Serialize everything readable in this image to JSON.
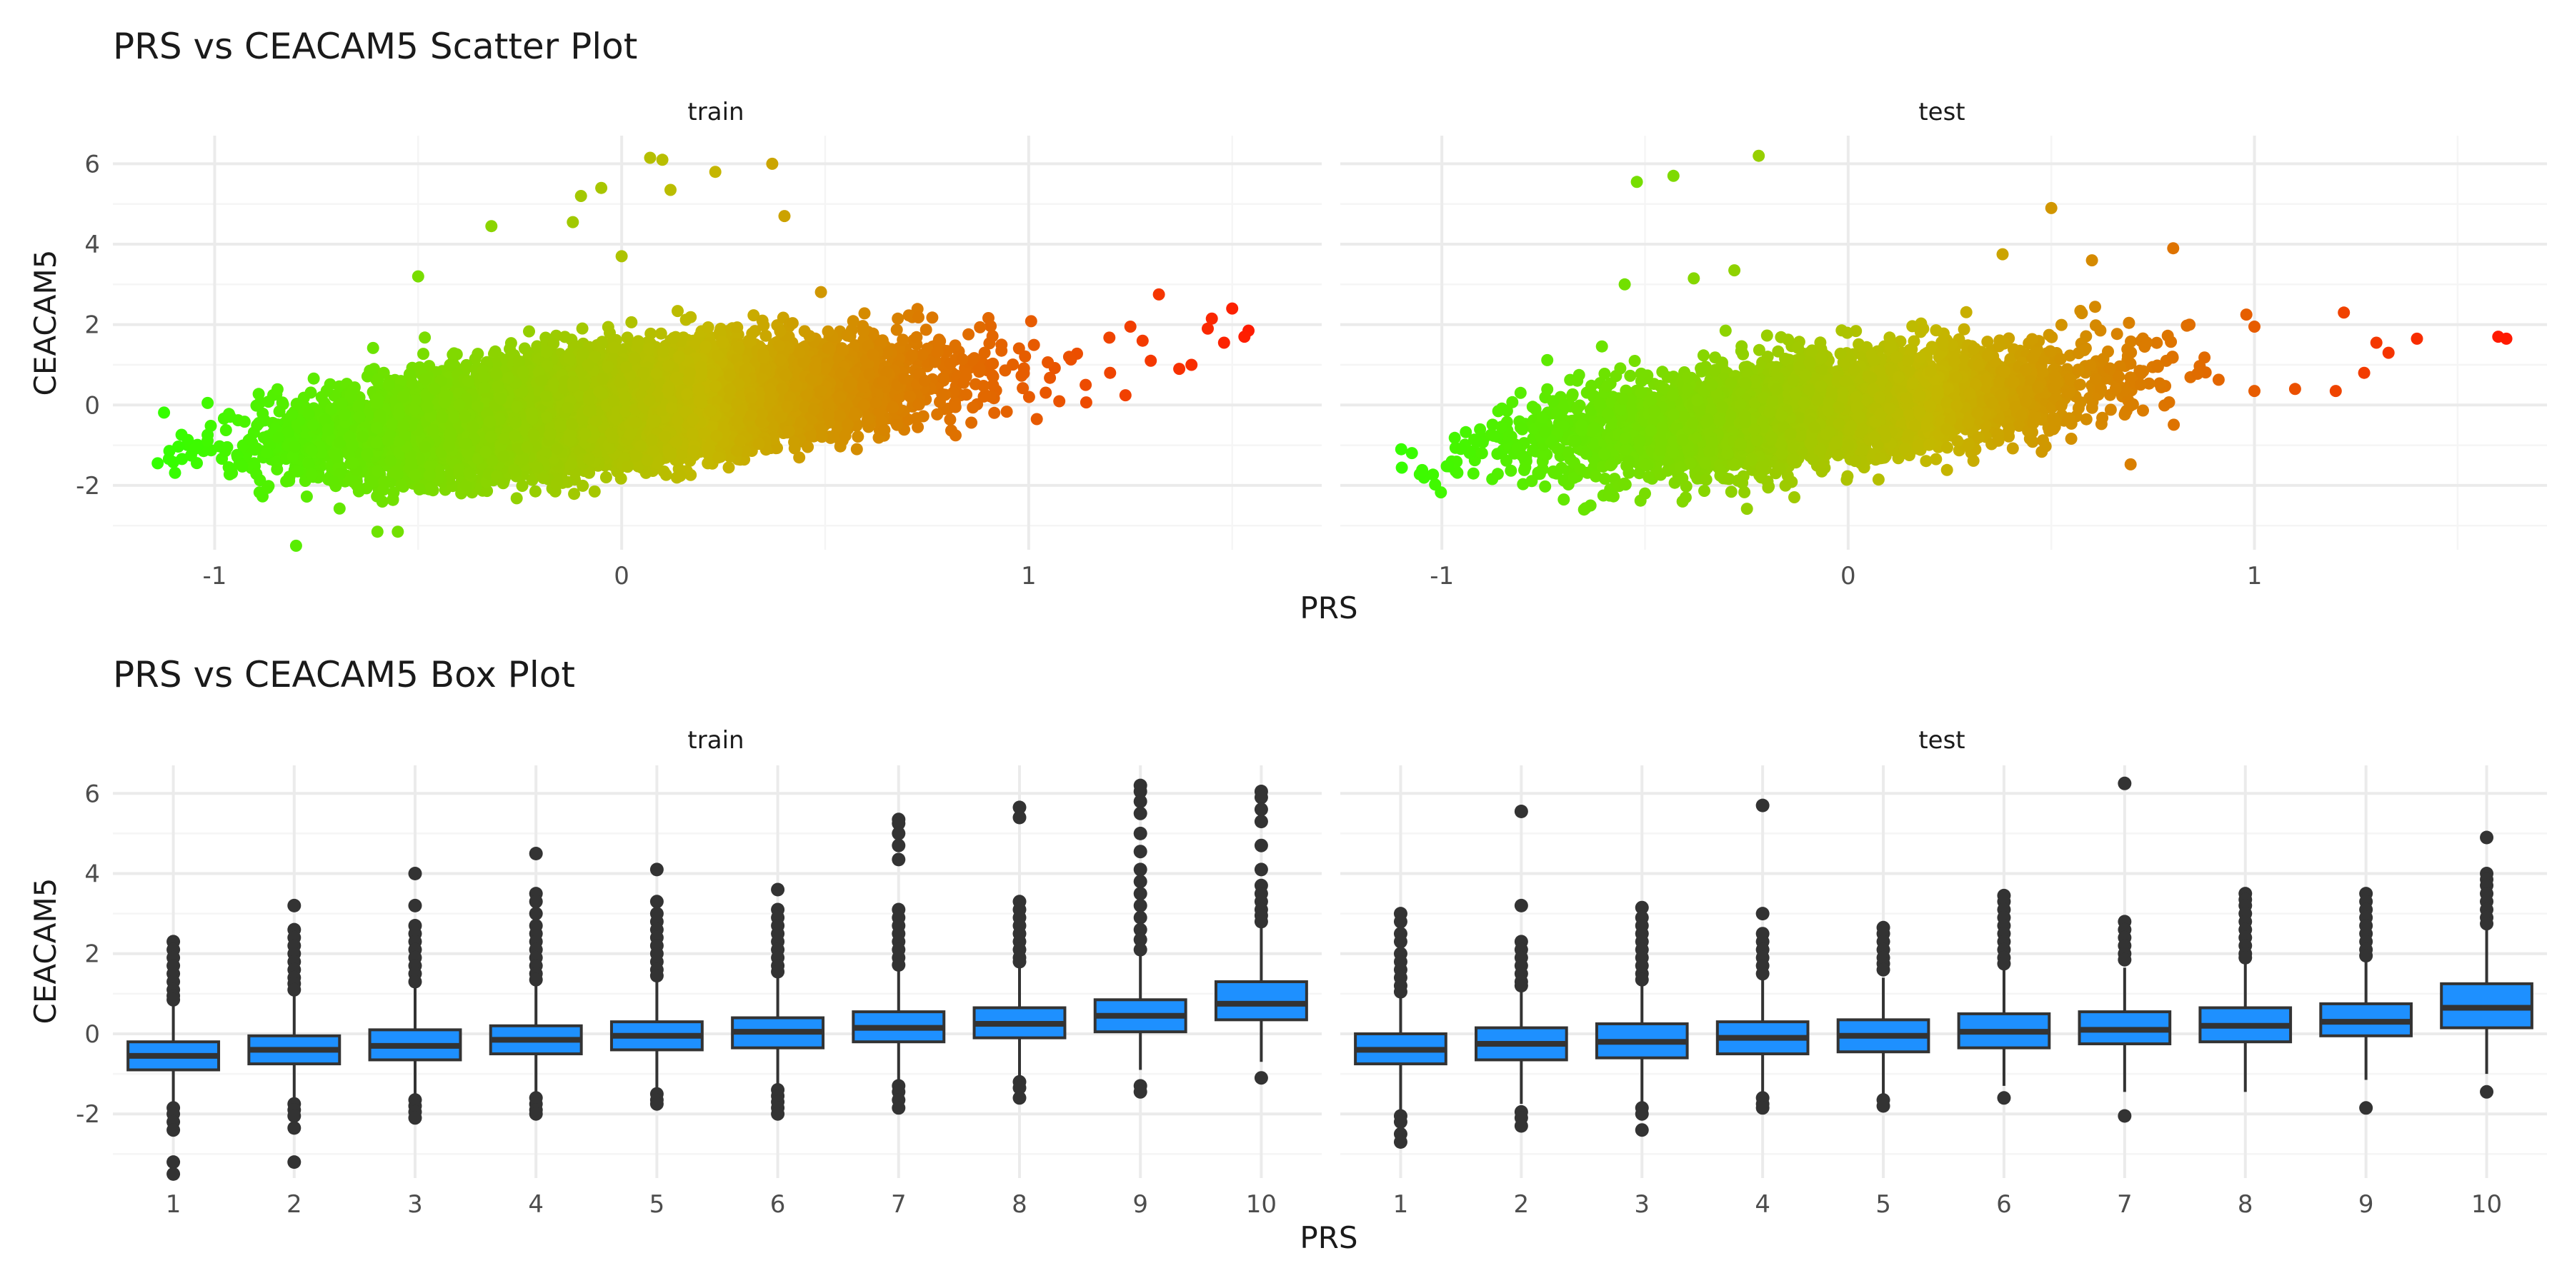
{
  "colors": {
    "background": "#ffffff",
    "grid_major": "#ebebeb",
    "grid_minor": "#f5f5f5",
    "box_fill": "#1e90ff",
    "box_line": "#333333",
    "scatter_low": "#33ff00",
    "scatter_mid": "#c4b800",
    "scatter_high": "#ff1a00"
  },
  "chart_data": [
    {
      "type": "scatter",
      "title": "PRS vs CEACAM5 Scatter Plot",
      "xlabel": "PRS",
      "ylabel": "CEACAM5",
      "grid": true,
      "color_by": "x",
      "facets": [
        {
          "label": "train",
          "xlim": [
            -1.25,
            1.72
          ],
          "ylim": [
            -3.6,
            6.7
          ],
          "x_ticks": [
            -1,
            0,
            1
          ],
          "y_ticks": [
            -2,
            0,
            2,
            4,
            6
          ],
          "x_tick_labels": [
            "-1",
            "0",
            "1"
          ],
          "y_tick_labels": [
            "-2",
            "0",
            "2",
            "4",
            "6"
          ],
          "cloud": {
            "n": 12000,
            "x_mean": -0.05,
            "x_sd": 0.33,
            "slope": 1.05,
            "intercept": -0.05,
            "resid_sd": 0.62,
            "xmin": -1.14,
            "xmax": 1.53
          },
          "outliers": [
            [
              -1.14,
              -1.45
            ],
            [
              -1.05,
              -1.1
            ],
            [
              -0.8,
              -3.5
            ],
            [
              -0.55,
              -3.15
            ],
            [
              -0.6,
              -3.15
            ],
            [
              0.07,
              6.15
            ],
            [
              0.1,
              6.1
            ],
            [
              0.37,
              6.0
            ],
            [
              0.23,
              5.8
            ],
            [
              -0.05,
              5.4
            ],
            [
              -0.1,
              5.2
            ],
            [
              0.12,
              5.35
            ],
            [
              -0.32,
              4.45
            ],
            [
              -0.12,
              4.55
            ],
            [
              0.4,
              4.7
            ],
            [
              -0.5,
              3.2
            ],
            [
              0.0,
              3.7
            ],
            [
              1.32,
              2.75
            ],
            [
              1.5,
              2.4
            ],
            [
              1.45,
              2.15
            ],
            [
              1.54,
              1.85
            ],
            [
              1.44,
              1.9
            ],
            [
              1.48,
              1.55
            ],
            [
              1.53,
              1.7
            ],
            [
              1.4,
              1.0
            ],
            [
              1.37,
              0.9
            ],
            [
              1.3,
              1.1
            ],
            [
              1.25,
              1.95
            ],
            [
              1.28,
              1.6
            ],
            [
              1.02,
              -0.35
            ],
            [
              0.82,
              -0.05
            ],
            [
              1.14,
              0.5
            ],
            [
              1.2,
              0.8
            ]
          ]
        },
        {
          "label": "test",
          "xlim": [
            -1.25,
            1.72
          ],
          "ylim": [
            -3.6,
            6.7
          ],
          "x_ticks": [
            -1,
            0,
            1
          ],
          "y_ticks": [
            -2,
            0,
            2,
            4,
            6
          ],
          "x_tick_labels": [
            "-1",
            "0",
            "1"
          ],
          "y_tick_labels": [
            "-2",
            "0",
            "2",
            "4",
            "6"
          ],
          "cloud": {
            "n": 4200,
            "x_mean": -0.08,
            "x_sd": 0.33,
            "slope": 1.05,
            "intercept": -0.05,
            "resid_sd": 0.62,
            "xmin": -1.1,
            "xmax": 1.2
          },
          "outliers": [
            [
              -1.1,
              -1.1
            ],
            [
              -0.52,
              5.55
            ],
            [
              -0.43,
              5.7
            ],
            [
              -0.22,
              6.2
            ],
            [
              0.5,
              4.9
            ],
            [
              1.6,
              1.7
            ],
            [
              1.62,
              1.65
            ],
            [
              1.4,
              1.65
            ],
            [
              1.33,
              1.3
            ],
            [
              1.22,
              2.3
            ],
            [
              1.3,
              1.55
            ],
            [
              1.1,
              0.4
            ],
            [
              1.0,
              0.35
            ],
            [
              1.2,
              0.35
            ],
            [
              1.27,
              0.8
            ],
            [
              1.0,
              1.95
            ],
            [
              0.84,
              2.0
            ],
            [
              0.98,
              2.25
            ],
            [
              0.6,
              3.6
            ],
            [
              0.8,
              3.9
            ],
            [
              0.38,
              3.75
            ],
            [
              -0.65,
              -2.6
            ],
            [
              -0.7,
              -2.35
            ],
            [
              -0.5,
              -2.2
            ],
            [
              -0.4,
              -2.3
            ],
            [
              -0.38,
              3.15
            ],
            [
              -0.28,
              3.35
            ],
            [
              -0.55,
              3.0
            ]
          ]
        }
      ]
    },
    {
      "type": "box",
      "title": "PRS vs CEACAM5 Box Plot",
      "xlabel": "PRS",
      "ylabel": "CEACAM5",
      "grid": true,
      "categories": [
        "1",
        "2",
        "3",
        "4",
        "5",
        "6",
        "7",
        "8",
        "9",
        "10"
      ],
      "facets": [
        {
          "label": "train",
          "ylim": [
            -3.6,
            6.7
          ],
          "y_ticks": [
            -2,
            0,
            2,
            4,
            6
          ],
          "y_tick_labels": [
            "-2",
            "0",
            "2",
            "4",
            "6"
          ],
          "boxes": [
            {
              "q1": -0.9,
              "median": -0.55,
              "q3": -0.2,
              "low": -1.8,
              "high": 0.75,
              "outliers": [
                2.3,
                2.1,
                1.9,
                1.7,
                1.5,
                1.3,
                1.1,
                0.95,
                0.85,
                -1.85,
                -2.0,
                -2.2,
                -2.4,
                -3.2,
                -3.5
              ]
            },
            {
              "q1": -0.75,
              "median": -0.4,
              "q3": -0.05,
              "low": -1.7,
              "high": 0.95,
              "outliers": [
                3.2,
                2.6,
                2.4,
                2.2,
                2.0,
                1.8,
                1.6,
                1.4,
                1.25,
                1.1,
                -1.75,
                -1.9,
                -2.05,
                -2.35,
                -3.2
              ]
            },
            {
              "q1": -0.65,
              "median": -0.3,
              "q3": 0.1,
              "low": -1.6,
              "high": 1.15,
              "outliers": [
                4.0,
                3.2,
                2.7,
                2.5,
                2.3,
                2.1,
                1.9,
                1.7,
                1.5,
                1.3,
                -1.65,
                -1.8,
                -1.95,
                -2.1
              ]
            },
            {
              "q1": -0.5,
              "median": -0.15,
              "q3": 0.2,
              "low": -1.5,
              "high": 1.25,
              "outliers": [
                4.5,
                3.5,
                3.3,
                3.0,
                2.7,
                2.5,
                2.3,
                2.1,
                1.9,
                1.7,
                1.5,
                1.35,
                -1.6,
                -1.75,
                -1.9,
                -2.0
              ]
            },
            {
              "q1": -0.4,
              "median": -0.05,
              "q3": 0.3,
              "low": -1.4,
              "high": 1.35,
              "outliers": [
                4.1,
                3.3,
                3.0,
                2.8,
                2.6,
                2.4,
                2.2,
                2.0,
                1.8,
                1.6,
                1.45,
                -1.5,
                -1.65,
                -1.75
              ]
            },
            {
              "q1": -0.35,
              "median": 0.05,
              "q3": 0.4,
              "low": -1.3,
              "high": 1.45,
              "outliers": [
                3.6,
                3.1,
                2.9,
                2.7,
                2.5,
                2.3,
                2.1,
                1.9,
                1.7,
                1.55,
                -1.4,
                -1.55,
                -1.7,
                -1.85,
                -2.0
              ]
            },
            {
              "q1": -0.2,
              "median": 0.15,
              "q3": 0.55,
              "low": -1.2,
              "high": 1.6,
              "outliers": [
                5.35,
                5.25,
                5.0,
                4.7,
                4.35,
                3.1,
                2.9,
                2.7,
                2.5,
                2.3,
                2.1,
                1.9,
                1.72,
                -1.3,
                -1.45,
                -1.65,
                -1.85
              ]
            },
            {
              "q1": -0.1,
              "median": 0.25,
              "q3": 0.65,
              "low": -1.05,
              "high": 1.7,
              "outliers": [
                5.65,
                5.4,
                3.3,
                3.1,
                2.9,
                2.7,
                2.5,
                2.3,
                2.1,
                1.9,
                1.8,
                -1.2,
                -1.35,
                -1.6
              ]
            },
            {
              "q1": 0.05,
              "median": 0.45,
              "q3": 0.85,
              "low": -0.9,
              "high": 1.95,
              "outliers": [
                6.2,
                6.05,
                5.8,
                5.5,
                5.0,
                4.55,
                4.1,
                3.8,
                3.5,
                3.2,
                2.9,
                2.6,
                2.35,
                2.1,
                -1.3,
                -1.45
              ]
            },
            {
              "q1": 0.35,
              "median": 0.75,
              "q3": 1.3,
              "low": -0.7,
              "high": 2.65,
              "outliers": [
                6.05,
                5.9,
                5.6,
                5.3,
                4.7,
                4.1,
                3.7,
                3.5,
                3.3,
                3.1,
                2.95,
                2.8,
                -1.1
              ]
            }
          ]
        },
        {
          "label": "test",
          "ylim": [
            -3.6,
            6.7
          ],
          "y_ticks": [
            -2,
            0,
            2,
            4,
            6
          ],
          "y_tick_labels": [
            "-2",
            "0",
            "2",
            "4",
            "6"
          ],
          "boxes": [
            {
              "q1": -0.75,
              "median": -0.4,
              "q3": 0.0,
              "low": -1.9,
              "high": 0.95,
              "outliers": [
                3.0,
                2.8,
                2.5,
                2.3,
                2.0,
                1.8,
                1.6,
                1.4,
                1.2,
                1.05,
                -2.05,
                -2.2,
                -2.5,
                -2.7
              ]
            },
            {
              "q1": -0.65,
              "median": -0.25,
              "q3": 0.15,
              "low": -1.75,
              "high": 1.1,
              "outliers": [
                5.55,
                3.2,
                2.3,
                2.1,
                1.9,
                1.7,
                1.5,
                1.3,
                1.2,
                -1.95,
                -2.1,
                -2.3
              ]
            },
            {
              "q1": -0.6,
              "median": -0.2,
              "q3": 0.25,
              "low": -1.7,
              "high": 1.25,
              "outliers": [
                3.15,
                2.9,
                2.7,
                2.5,
                2.3,
                2.1,
                1.9,
                1.7,
                1.5,
                1.35,
                -1.85,
                -2.0,
                -2.4
              ]
            },
            {
              "q1": -0.5,
              "median": -0.1,
              "q3": 0.3,
              "low": -1.55,
              "high": 1.35,
              "outliers": [
                5.7,
                3.0,
                2.5,
                2.3,
                2.1,
                1.9,
                1.7,
                1.5,
                -1.6,
                -1.75,
                -1.85
              ]
            },
            {
              "q1": -0.45,
              "median": -0.05,
              "q3": 0.35,
              "low": -1.5,
              "high": 1.4,
              "outliers": [
                2.65,
                2.5,
                2.3,
                2.1,
                1.9,
                1.75,
                1.6,
                -1.65,
                -1.8
              ]
            },
            {
              "q1": -0.35,
              "median": 0.05,
              "q3": 0.5,
              "low": -1.3,
              "high": 1.6,
              "outliers": [
                3.45,
                3.3,
                3.1,
                2.9,
                2.7,
                2.5,
                2.3,
                2.1,
                1.9,
                1.75,
                -1.6
              ]
            },
            {
              "q1": -0.25,
              "median": 0.1,
              "q3": 0.55,
              "low": -1.45,
              "high": 1.65,
              "outliers": [
                6.25,
                2.8,
                2.6,
                2.4,
                2.2,
                2.0,
                1.85,
                -2.05
              ]
            },
            {
              "q1": -0.2,
              "median": 0.2,
              "q3": 0.65,
              "low": -1.45,
              "high": 1.8,
              "outliers": [
                3.5,
                3.35,
                3.2,
                3.0,
                2.8,
                2.6,
                2.4,
                2.2,
                2.0,
                1.9
              ]
            },
            {
              "q1": -0.05,
              "median": 0.3,
              "q3": 0.75,
              "low": -1.15,
              "high": 1.85,
              "outliers": [
                3.5,
                3.3,
                3.1,
                2.9,
                2.7,
                2.5,
                2.3,
                2.1,
                1.95,
                -1.85
              ]
            },
            {
              "q1": 0.15,
              "median": 0.65,
              "q3": 1.25,
              "low": -1.0,
              "high": 2.6,
              "outliers": [
                4.9,
                4.0,
                3.85,
                3.7,
                3.5,
                3.3,
                3.1,
                2.9,
                2.75,
                -1.45
              ]
            }
          ]
        }
      ]
    }
  ]
}
